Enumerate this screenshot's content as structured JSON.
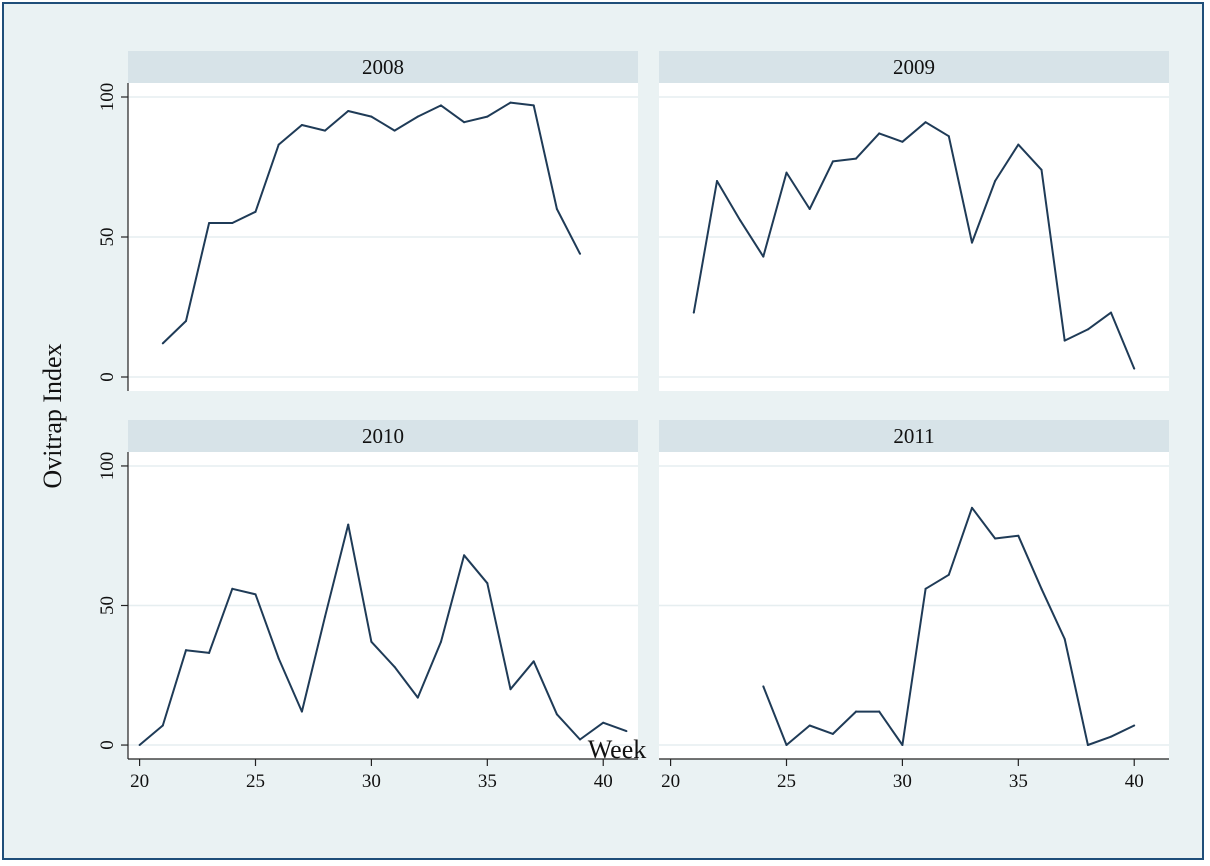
{
  "chart_data": {
    "type": "line",
    "xlabel": "Week",
    "ylabel": "Ovitrap Index",
    "xlim": [
      19.5,
      41.5
    ],
    "ylim": [
      -5,
      105
    ],
    "x_ticks": [
      20,
      25,
      30,
      35,
      40
    ],
    "y_ticks": [
      0,
      50,
      100
    ],
    "grid": true,
    "line_color": "#1f3b57",
    "panels": [
      {
        "title": "2008",
        "x": [
          21,
          22,
          23,
          24,
          25,
          26,
          27,
          28,
          29,
          30,
          31,
          32,
          33,
          34,
          35,
          36,
          37,
          38,
          39
        ],
        "values": [
          12,
          20,
          55,
          55,
          59,
          83,
          90,
          88,
          95,
          93,
          88,
          93,
          97,
          91,
          93,
          98,
          97,
          60,
          44
        ]
      },
      {
        "title": "2009",
        "x": [
          21,
          22,
          23,
          24,
          25,
          26,
          27,
          28,
          29,
          30,
          31,
          32,
          33,
          34,
          35,
          36,
          37,
          38,
          39,
          40
        ],
        "values": [
          23,
          70,
          56,
          43,
          73,
          60,
          77,
          78,
          87,
          84,
          91,
          86,
          48,
          70,
          83,
          74,
          13,
          17,
          23,
          3
        ]
      },
      {
        "title": "2010",
        "x": [
          20,
          21,
          22,
          23,
          24,
          25,
          26,
          27,
          28,
          29,
          30,
          31,
          32,
          33,
          34,
          35,
          36,
          37,
          38,
          39,
          40,
          41
        ],
        "values": [
          0,
          7,
          34,
          33,
          56,
          54,
          31,
          12,
          46,
          79,
          37,
          28,
          17,
          37,
          68,
          58,
          20,
          30,
          11,
          2,
          8,
          5
        ]
      },
      {
        "title": "2011",
        "x": [
          24,
          25,
          26,
          27,
          28,
          29,
          30,
          31,
          32,
          33,
          34,
          35,
          36,
          37,
          38,
          39,
          40
        ],
        "values": [
          21,
          0,
          7,
          4,
          12,
          12,
          0,
          56,
          61,
          85,
          74,
          75,
          56,
          38,
          0,
          3,
          7
        ]
      }
    ]
  }
}
